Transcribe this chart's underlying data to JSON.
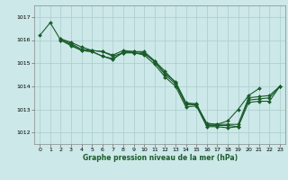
{
  "xlabel": "Graphe pression niveau de la mer (hPa)",
  "bg_color": "#cce8e8",
  "grid_color": "#aacccc",
  "line_color": "#1a5c2a",
  "ylim": [
    1011.5,
    1017.5
  ],
  "xlim": [
    -0.5,
    23.5
  ],
  "yticks": [
    1012,
    1013,
    1014,
    1015,
    1016,
    1017
  ],
  "xticks": [
    0,
    1,
    2,
    3,
    4,
    5,
    6,
    7,
    8,
    9,
    10,
    11,
    12,
    13,
    14,
    15,
    16,
    17,
    18,
    19,
    20,
    21,
    22,
    23
  ],
  "series": [
    {
      "x": [
        0,
        1,
        2,
        3,
        4,
        5,
        6,
        7,
        8,
        9,
        10,
        11,
        12,
        13,
        14,
        15,
        16,
        17,
        18,
        19,
        20,
        21
      ],
      "y": [
        1016.2,
        1016.75,
        1016.0,
        1015.75,
        1015.55,
        1015.5,
        1015.3,
        1015.2,
        1015.45,
        1015.45,
        1015.4,
        1015.1,
        1014.55,
        1014.2,
        1013.3,
        1013.2,
        1012.4,
        1012.35,
        1012.5,
        1013.0,
        1013.6,
        1013.9
      ]
    },
    {
      "x": [
        2,
        3,
        4,
        5,
        6,
        7,
        8,
        9,
        10,
        11,
        12,
        13,
        14,
        15,
        16,
        17,
        18,
        19,
        20,
        21,
        22,
        23
      ],
      "y": [
        1016.0,
        1015.8,
        1015.55,
        1015.5,
        1015.3,
        1015.15,
        1015.5,
        1015.5,
        1015.5,
        1015.1,
        1014.65,
        1014.15,
        1013.25,
        1013.25,
        1012.35,
        1012.35,
        1012.35,
        1012.35,
        1013.5,
        1013.55,
        1013.6,
        1014.0
      ]
    },
    {
      "x": [
        2,
        3,
        4,
        5,
        6,
        7,
        8,
        9,
        10,
        11,
        12,
        13,
        14,
        15,
        16,
        17,
        18,
        19,
        20,
        21,
        22,
        23
      ],
      "y": [
        1016.05,
        1015.9,
        1015.7,
        1015.55,
        1015.5,
        1015.35,
        1015.55,
        1015.5,
        1015.45,
        1015.05,
        1014.5,
        1014.1,
        1013.2,
        1013.2,
        1012.3,
        1012.3,
        1012.3,
        1012.25,
        1013.4,
        1013.45,
        1013.5,
        1014.0
      ]
    },
    {
      "x": [
        2,
        3,
        4,
        5,
        6,
        7,
        8,
        9,
        10,
        11,
        12,
        13,
        14,
        15,
        16,
        17,
        18,
        19,
        20,
        21,
        22,
        23
      ],
      "y": [
        1016.05,
        1015.85,
        1015.6,
        1015.55,
        1015.5,
        1015.3,
        1015.45,
        1015.45,
        1015.35,
        1014.95,
        1014.4,
        1014.0,
        1013.1,
        1013.15,
        1012.25,
        1012.25,
        1012.2,
        1012.25,
        1013.3,
        1013.35,
        1013.35,
        1014.0
      ]
    }
  ],
  "markersize": 2.0,
  "linewidth": 0.8,
  "tick_fontsize": 4.5,
  "xlabel_fontsize": 5.5
}
